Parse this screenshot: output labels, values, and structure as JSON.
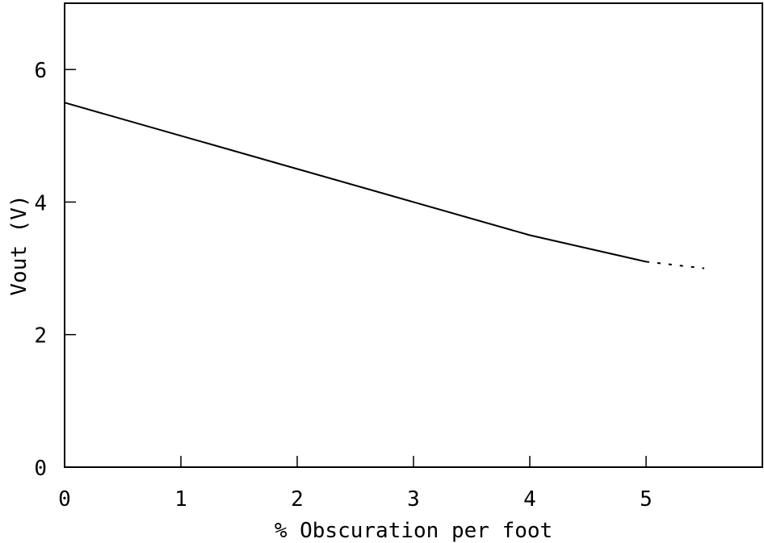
{
  "chart_data": {
    "type": "line",
    "title": "",
    "xlabel": "% Obscuration per foot",
    "ylabel": "Vout (V)",
    "xlim": [
      0,
      6
    ],
    "ylim": [
      0,
      7
    ],
    "xticks": [
      0,
      1,
      2,
      3,
      4,
      5
    ],
    "yticks": [
      0,
      2,
      4,
      6
    ],
    "grid": false,
    "colors": {
      "line": "#000000",
      "axis": "#000000"
    },
    "series": [
      {
        "style": "solid",
        "x": [
          0,
          1,
          2,
          3,
          4,
          5
        ],
        "y": [
          5.5,
          5.0,
          4.5,
          4.0,
          3.5,
          3.1
        ]
      },
      {
        "style": "dotted",
        "x": [
          5,
          5.5
        ],
        "y": [
          3.1,
          3.0
        ]
      }
    ]
  }
}
